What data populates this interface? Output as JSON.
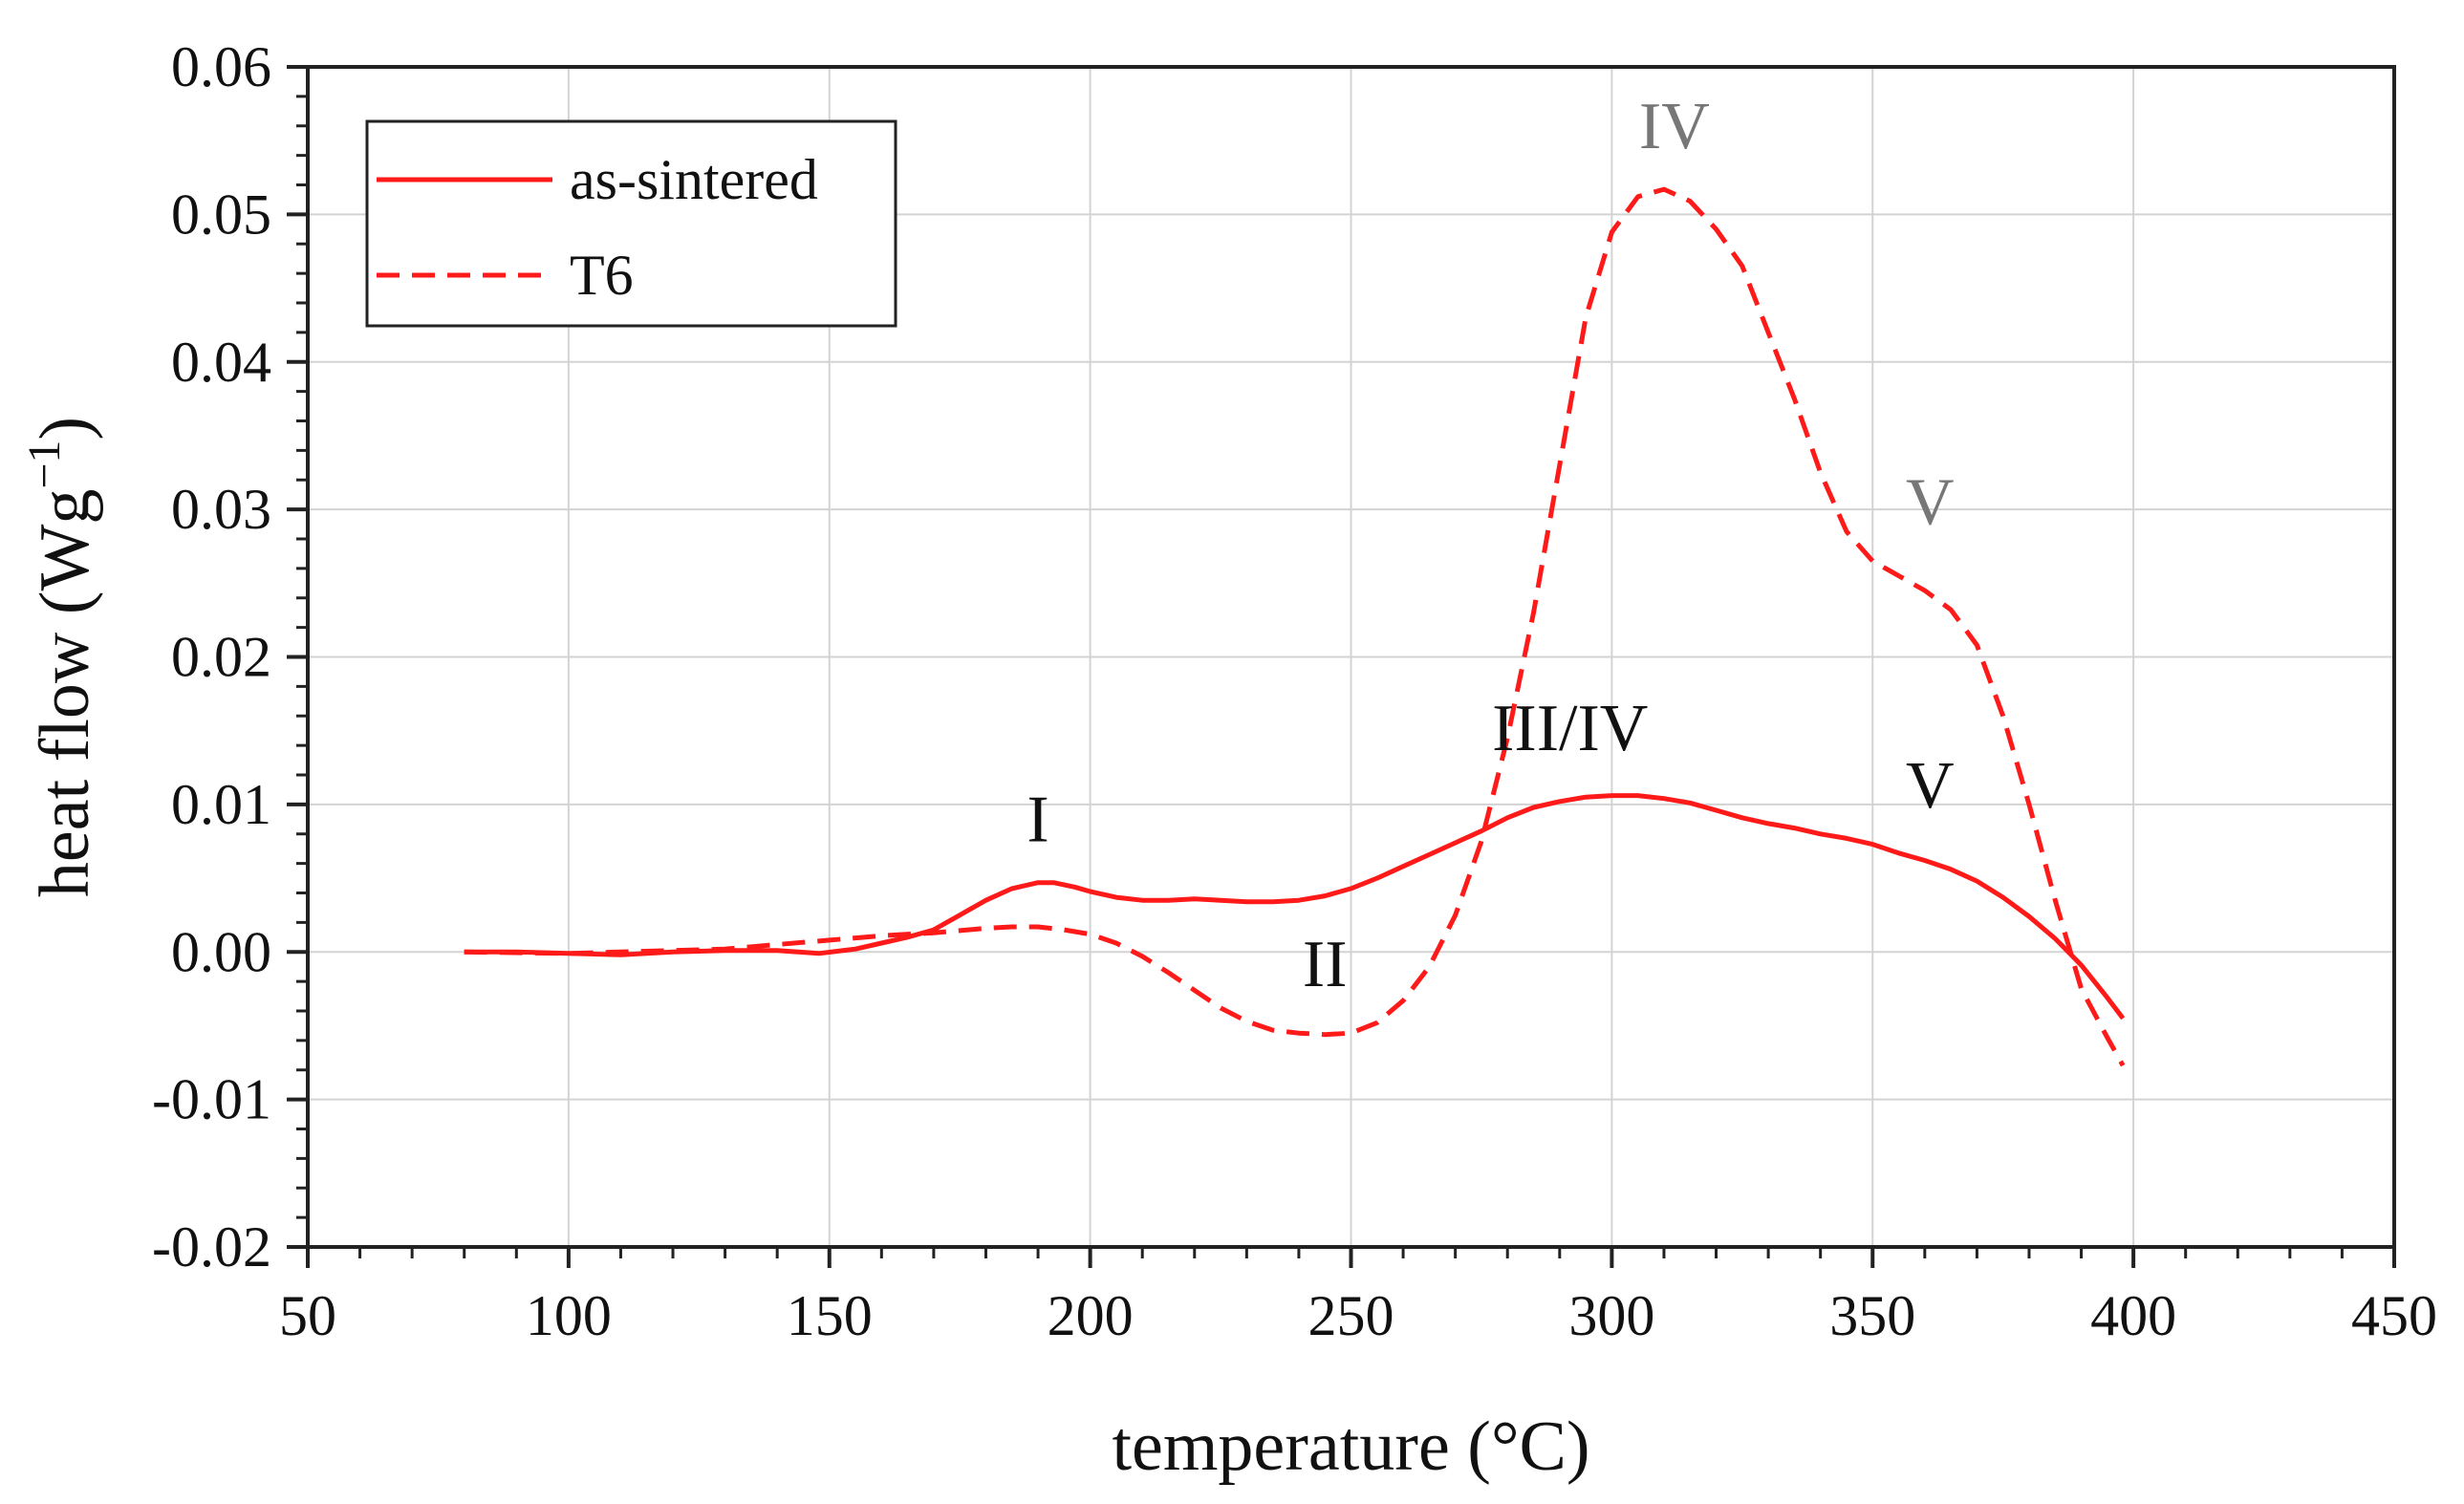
{
  "chart_data": {
    "type": "line",
    "title": "",
    "xlabel": "temperature (°C)",
    "ylabel": "heat flow (Wg",
    "ylabel_sup": "−1",
    "ylabel_close": ")",
    "xlim": [
      50,
      450
    ],
    "ylim": [
      -0.02,
      0.06
    ],
    "xticks": [
      50,
      100,
      150,
      200,
      250,
      300,
      350,
      400,
      450
    ],
    "xtick_labels": [
      "50",
      "100",
      "150",
      "200",
      "250",
      "300",
      "350",
      "400",
      "450"
    ],
    "yticks": [
      -0.02,
      -0.01,
      0.0,
      0.01,
      0.02,
      0.03,
      0.04,
      0.05,
      0.06
    ],
    "ytick_labels": [
      "-0.02",
      "-0.01",
      "0.00",
      "0.01",
      "0.02",
      "0.03",
      "0.04",
      "0.05",
      "0.06"
    ],
    "grid": true,
    "legend_position": "top-left",
    "series": [
      {
        "name": "as-sintered",
        "style": "solid",
        "color": "#ff1a1a",
        "x": [
          80,
          90,
          100,
          110,
          120,
          130,
          140,
          148,
          155,
          160,
          165,
          170,
          175,
          180,
          185,
          190,
          193,
          197,
          200,
          205,
          210,
          215,
          220,
          225,
          230,
          235,
          240,
          245,
          250,
          255,
          260,
          265,
          270,
          275,
          280,
          285,
          290,
          295,
          300,
          305,
          310,
          315,
          320,
          325,
          330,
          335,
          340,
          345,
          350,
          355,
          360,
          365,
          370,
          375,
          380,
          385,
          390,
          395,
          398
        ],
        "values": [
          0.0,
          0.0,
          -0.0001,
          -0.0002,
          0.0,
          0.0001,
          0.0001,
          -0.0001,
          0.0002,
          0.0006,
          0.001,
          0.0015,
          0.0025,
          0.0035,
          0.0043,
          0.0047,
          0.0047,
          0.0044,
          0.0041,
          0.0037,
          0.0035,
          0.0035,
          0.0036,
          0.0035,
          0.0034,
          0.0034,
          0.0035,
          0.0038,
          0.0043,
          0.005,
          0.0058,
          0.0066,
          0.0074,
          0.0082,
          0.0091,
          0.0098,
          0.0102,
          0.0105,
          0.0106,
          0.0106,
          0.0104,
          0.0101,
          0.0096,
          0.0091,
          0.0087,
          0.0084,
          0.008,
          0.0077,
          0.0073,
          0.0067,
          0.0062,
          0.0056,
          0.0048,
          0.0037,
          0.0024,
          0.0009,
          -0.0009,
          -0.0031,
          -0.0045
        ]
      },
      {
        "name": "T6",
        "style": "dashed",
        "color": "#ff1a1a",
        "x": [
          80,
          100,
          120,
          130,
          140,
          150,
          160,
          170,
          180,
          185,
          190,
          195,
          200,
          205,
          210,
          215,
          220,
          225,
          230,
          235,
          240,
          245,
          250,
          255,
          260,
          265,
          270,
          275,
          280,
          285,
          290,
          295,
          300,
          305,
          310,
          315,
          320,
          325,
          330,
          335,
          340,
          345,
          350,
          355,
          360,
          365,
          370,
          375,
          380,
          385,
          390,
          395,
          398
        ],
        "values": [
          0.0,
          -0.0001,
          0.0001,
          0.0002,
          0.0005,
          0.0008,
          0.0011,
          0.0013,
          0.0016,
          0.0017,
          0.0017,
          0.0015,
          0.0012,
          0.0006,
          -0.0003,
          -0.0014,
          -0.0026,
          -0.0038,
          -0.0047,
          -0.0053,
          -0.0055,
          -0.0056,
          -0.0055,
          -0.0048,
          -0.0033,
          -0.001,
          0.0025,
          0.0075,
          0.0145,
          0.023,
          0.033,
          0.043,
          0.0488,
          0.0512,
          0.0517,
          0.0509,
          0.049,
          0.0465,
          0.042,
          0.0375,
          0.0325,
          0.0285,
          0.0265,
          0.0255,
          0.0245,
          0.0232,
          0.0208,
          0.016,
          0.01,
          0.0035,
          -0.0025,
          -0.0058,
          -0.0077
        ]
      }
    ],
    "annotations": [
      {
        "text": "I",
        "x": 190,
        "y": 0.0075,
        "color": "#111111"
      },
      {
        "text": "II",
        "x": 245,
        "y": -0.0023,
        "color": "#111111"
      },
      {
        "text": "III/IV",
        "x": 292,
        "y": 0.0137,
        "color": "#111111"
      },
      {
        "text": "V",
        "x": 361,
        "y": 0.0098,
        "color": "#111111"
      },
      {
        "text": "IV",
        "x": 312,
        "y": 0.0545,
        "color": "#777777"
      },
      {
        "text": "V",
        "x": 361,
        "y": 0.029,
        "color": "#777777"
      }
    ]
  }
}
